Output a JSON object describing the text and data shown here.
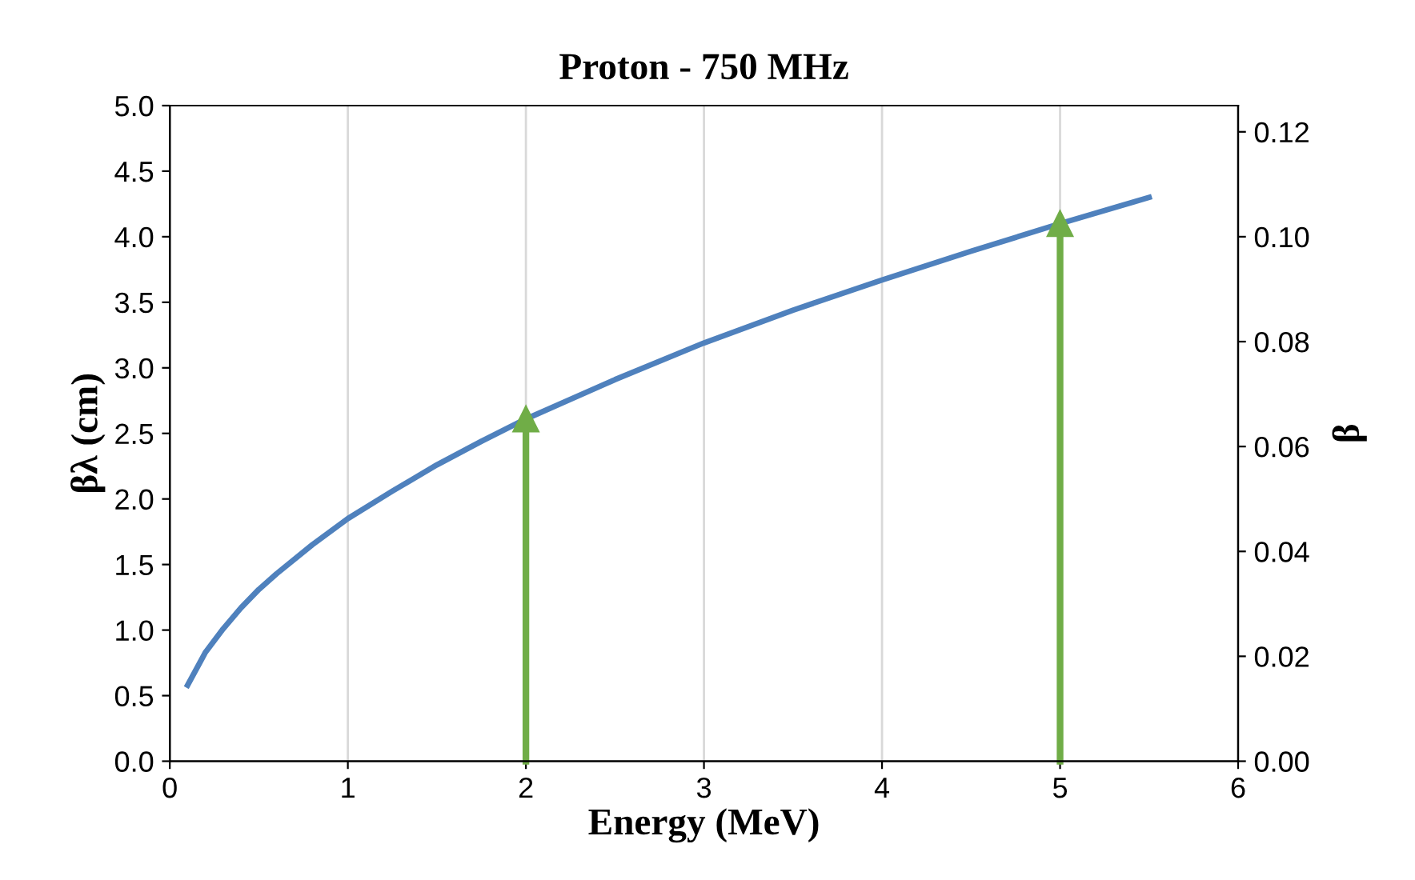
{
  "chart_data": {
    "type": "line",
    "title": "Proton - 750 MHz",
    "xlabel": "Energy (MeV)",
    "ylabel": "βλ (cm)",
    "y2label": "β",
    "x": [
      0.1,
      0.2,
      0.3,
      0.4,
      0.5,
      0.6,
      0.8,
      1.0,
      1.25,
      1.5,
      1.75,
      2.0,
      2.5,
      3.0,
      3.5,
      4.0,
      4.5,
      5.0,
      5.5
    ],
    "series": [
      {
        "color": "#4f81bd",
        "values": [
          0.58,
          0.83,
          1.01,
          1.17,
          1.31,
          1.43,
          1.65,
          1.85,
          2.06,
          2.26,
          2.44,
          2.61,
          2.91,
          3.19,
          3.44,
          3.67,
          3.89,
          4.1,
          4.3
        ]
      }
    ],
    "xlim": [
      0,
      6
    ],
    "xticks": [
      0,
      1,
      2,
      3,
      4,
      5,
      6
    ],
    "ylim": [
      0,
      5
    ],
    "yticks": [
      {
        "value": 0,
        "label": "0.0"
      },
      {
        "value": 0.5,
        "label": "0.5"
      },
      {
        "value": 1,
        "label": "1.0"
      },
      {
        "value": 1.5,
        "label": "1.5"
      },
      {
        "value": 2,
        "label": "2.0"
      },
      {
        "value": 2.5,
        "label": "2.5"
      },
      {
        "value": 3,
        "label": "3.0"
      },
      {
        "value": 3.5,
        "label": "3.5"
      },
      {
        "value": 4,
        "label": "4.0"
      },
      {
        "value": 4.5,
        "label": "4.5"
      },
      {
        "value": 5,
        "label": "5.0"
      }
    ],
    "y2lim": [
      0,
      0.125
    ],
    "y2ticks": [
      {
        "value": 0,
        "label": "0.00"
      },
      {
        "value": 0.02,
        "label": "0.02"
      },
      {
        "value": 0.04,
        "label": "0.04"
      },
      {
        "value": 0.06,
        "label": "0.06"
      },
      {
        "value": 0.08,
        "label": "0.08"
      },
      {
        "value": 0.1,
        "label": "0.10"
      },
      {
        "value": 0.12,
        "label": "0.12"
      }
    ],
    "ref_lines": [
      {
        "axis": "x",
        "value": 2,
        "color": "#70ad47"
      },
      {
        "axis": "x",
        "value": 5,
        "color": "#70ad47"
      }
    ],
    "grid": "x",
    "marker": "none",
    "line_style": "solid"
  }
}
